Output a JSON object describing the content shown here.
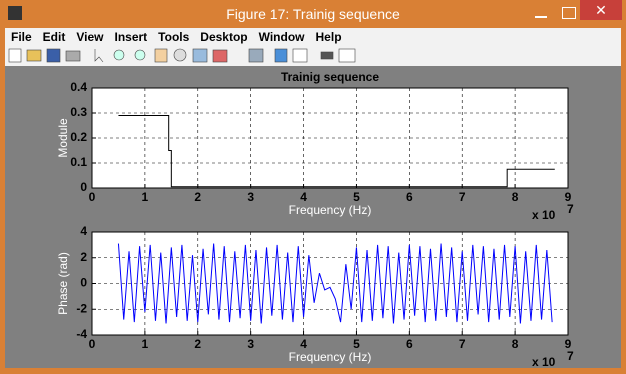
{
  "window": {
    "title": "Figure 17: Trainig sequence",
    "menu": [
      "File",
      "Edit",
      "View",
      "Insert",
      "Tools",
      "Desktop",
      "Window",
      "Help"
    ]
  },
  "chart_data": [
    {
      "type": "line",
      "title": "Trainig sequence",
      "x_label": "Frequency (Hz)",
      "y_label": "Module",
      "x_multiplier": "x 10",
      "x_exponent": "7",
      "x": [
        0.5,
        1.45,
        1.45,
        1.5,
        1.5,
        7.85,
        7.85,
        8.75
      ],
      "series": [
        {
          "color": "#000000",
          "values": [
            0.29,
            0.29,
            0.15,
            0.15,
            0.005,
            0.005,
            0.075,
            0.075
          ]
        }
      ],
      "xlim": [
        0,
        9
      ],
      "xticks": [
        0,
        1,
        2,
        3,
        4,
        5,
        6,
        7,
        8,
        9
      ],
      "ylim": [
        0,
        0.4
      ],
      "yticks": [
        0,
        0.1,
        0.2,
        0.3,
        0.4
      ],
      "grid": true
    },
    {
      "type": "line",
      "x_label": "Frequency (Hz)",
      "y_label": "Phase (rad)",
      "x_multiplier": "x 10",
      "x_exponent": "7",
      "x": [
        0.5,
        0.6,
        0.7,
        0.8,
        0.9,
        1.0,
        1.1,
        1.2,
        1.3,
        1.4,
        1.5,
        1.6,
        1.7,
        1.8,
        1.9,
        2.0,
        2.1,
        2.2,
        2.3,
        2.4,
        2.5,
        2.6,
        2.7,
        2.8,
        2.9,
        3.0,
        3.1,
        3.2,
        3.3,
        3.4,
        3.5,
        3.6,
        3.7,
        3.8,
        3.9,
        4.0,
        4.1,
        4.2,
        4.3,
        4.4,
        4.5,
        4.6,
        4.7,
        4.8,
        4.9,
        5.0,
        5.1,
        5.2,
        5.3,
        5.4,
        5.5,
        5.6,
        5.7,
        5.8,
        5.9,
        6.0,
        6.1,
        6.2,
        6.3,
        6.4,
        6.5,
        6.6,
        6.7,
        6.8,
        6.9,
        7.0,
        7.1,
        7.2,
        7.3,
        7.4,
        7.5,
        7.6,
        7.7,
        7.8,
        7.9,
        8.0,
        8.1,
        8.2,
        8.3,
        8.4,
        8.5,
        8.6,
        8.7
      ],
      "series": [
        {
          "color": "#0000ff",
          "values": [
            3.1,
            -2.8,
            2.5,
            -3.0,
            2.9,
            -2.2,
            3.0,
            -2.9,
            2.4,
            -3.1,
            2.8,
            -2.6,
            3.0,
            -2.9,
            2.2,
            -3.0,
            2.7,
            -2.4,
            3.1,
            -2.8,
            2.9,
            -3.0,
            2.5,
            -2.7,
            3.0,
            -2.9,
            2.6,
            -3.1,
            2.8,
            -2.5,
            3.0,
            -2.8,
            2.4,
            -3.0,
            2.9,
            -2.6,
            2.2,
            -1.5,
            0.8,
            -0.5,
            -0.3,
            -1.2,
            -3.0,
            1.5,
            -2.0,
            2.8,
            -3.0,
            2.6,
            -2.9,
            3.0,
            -2.7,
            2.9,
            -3.1,
            2.4,
            -2.8,
            3.0,
            -2.5,
            2.9,
            -3.0,
            2.7,
            -2.9,
            3.1,
            -2.6,
            2.8,
            -3.0,
            2.5,
            -2.9,
            3.0,
            -2.4,
            2.9,
            -3.0,
            2.7,
            -2.8,
            3.0,
            -2.6,
            2.9,
            -3.1,
            2.5,
            -2.9,
            3.0,
            -2.8,
            2.6,
            -3.0
          ]
        }
      ],
      "xlim": [
        0,
        9
      ],
      "xticks": [
        0,
        1,
        2,
        3,
        4,
        5,
        6,
        7,
        8,
        9
      ],
      "ylim": [
        -4,
        4
      ],
      "yticks": [
        -4,
        -2,
        0,
        2,
        4
      ],
      "grid": true
    }
  ]
}
